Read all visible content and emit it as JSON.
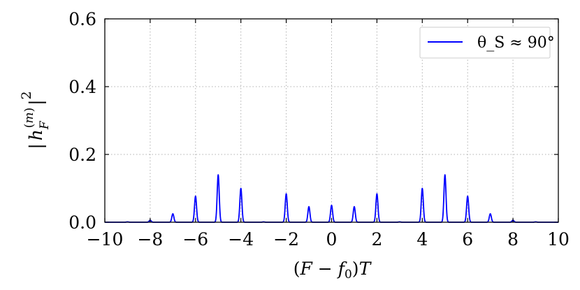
{
  "chart_data": {
    "type": "line",
    "xlabel": "(F − f₀)T",
    "ylabel": "|h_F^(m)|²",
    "xlim": [
      -10,
      10
    ],
    "ylim": [
      0,
      0.6
    ],
    "xticks": [
      -10,
      -8,
      -6,
      -4,
      -2,
      0,
      2,
      4,
      6,
      8,
      10
    ],
    "xtick_labels": [
      "−10",
      "−8",
      "−6",
      "−4",
      "−2",
      "0",
      "2",
      "4",
      "6",
      "8",
      "10"
    ],
    "yticks": [
      0.0,
      0.2,
      0.4,
      0.6
    ],
    "ytick_labels": [
      "0.0",
      "0.2",
      "0.4",
      "0.6"
    ],
    "grid": true,
    "legend_placement": "top-right",
    "series": [
      {
        "name": "θ_S ≈ 90°",
        "color": "#0000ff",
        "baseline": 0.0,
        "peaks": [
          {
            "x": -9,
            "y": 0.001
          },
          {
            "x": -8,
            "y": 0.006
          },
          {
            "x": -7,
            "y": 0.025
          },
          {
            "x": -6,
            "y": 0.077
          },
          {
            "x": -5,
            "y": 0.14
          },
          {
            "x": -4,
            "y": 0.1
          },
          {
            "x": -3,
            "y": 0.001
          },
          {
            "x": -2,
            "y": 0.084
          },
          {
            "x": -1,
            "y": 0.046
          },
          {
            "x": 0,
            "y": 0.05
          },
          {
            "x": 1,
            "y": 0.046
          },
          {
            "x": 2,
            "y": 0.084
          },
          {
            "x": 3,
            "y": 0.001
          },
          {
            "x": 4,
            "y": 0.1
          },
          {
            "x": 5,
            "y": 0.14
          },
          {
            "x": 6,
            "y": 0.077
          },
          {
            "x": 7,
            "y": 0.025
          },
          {
            "x": 8,
            "y": 0.006
          },
          {
            "x": 9,
            "y": 0.001
          }
        ]
      }
    ]
  },
  "legend": {
    "label": "θ_S ≈ 90°"
  }
}
